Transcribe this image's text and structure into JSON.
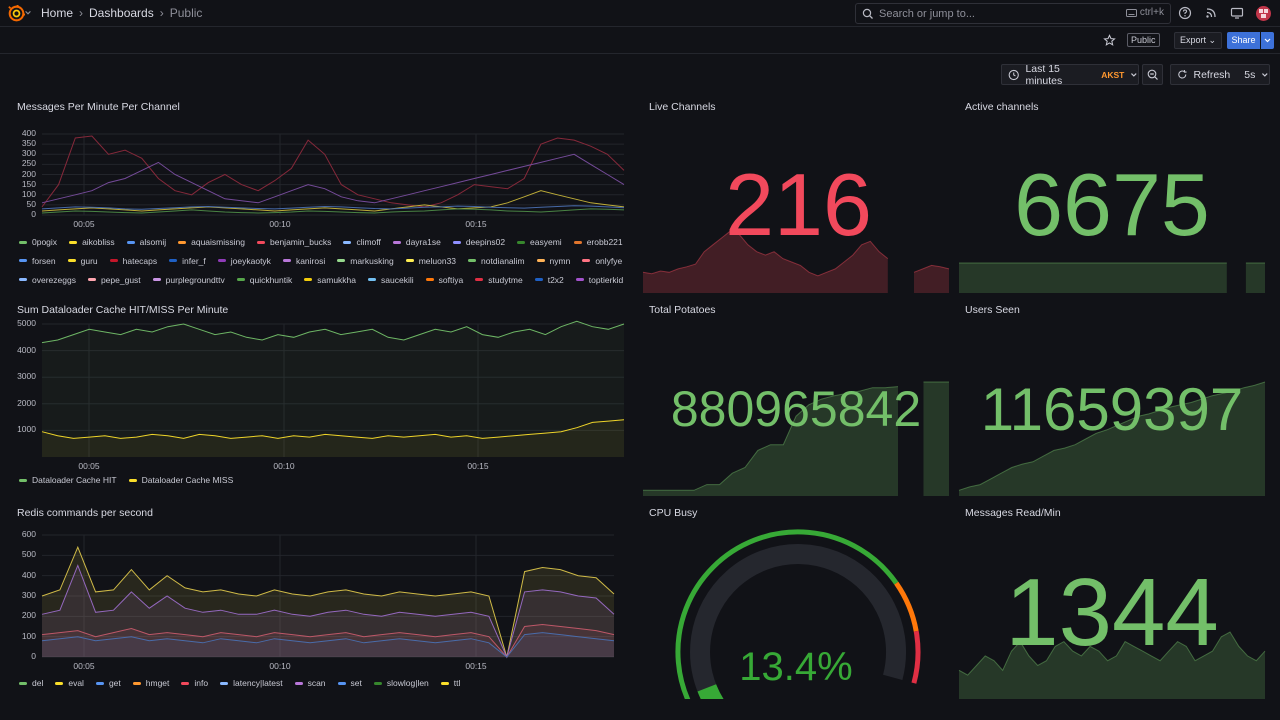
{
  "nav": {
    "breadcrumbs": [
      "Home",
      "Dashboards",
      "Public"
    ],
    "search_placeholder": "Search or jump to...",
    "search_shortcut": "ctrl+k"
  },
  "toolbar": {
    "public_badge": "Public",
    "export_label": "Export",
    "share_label": "Share",
    "time_range": "Last 15 minutes",
    "timezone": "AKST",
    "refresh_label": "Refresh",
    "refresh_interval": "5s"
  },
  "colors": {
    "background": "#111217",
    "accent": "#3d71d9",
    "green": "#73bf69",
    "red": "#f2495c",
    "yellow": "#fade2a"
  },
  "panels": {
    "messages_per_minute": {
      "title": "Messages Per Minute Per Channel",
      "legend": [
        {
          "name": "0pogix",
          "color": "#73bf69"
        },
        {
          "name": "aikobliss",
          "color": "#fade2a"
        },
        {
          "name": "alsomij",
          "color": "#5794f2"
        },
        {
          "name": "aquaismissing",
          "color": "#ff9830"
        },
        {
          "name": "benjamin_bucks",
          "color": "#f2495c"
        },
        {
          "name": "climoff",
          "color": "#8ab8ff"
        },
        {
          "name": "dayra1se",
          "color": "#b877d9"
        },
        {
          "name": "deepins02",
          "color": "#8f8fff"
        },
        {
          "name": "easyemi",
          "color": "#37872d"
        },
        {
          "name": "erobb221",
          "color": "#e0752d"
        },
        {
          "name": "forsen",
          "color": "#5794f2"
        },
        {
          "name": "guru",
          "color": "#fade2a"
        },
        {
          "name": "hatecaps",
          "color": "#c4162a"
        },
        {
          "name": "infer_f",
          "color": "#1f60c4"
        },
        {
          "name": "joeykaotyk",
          "color": "#8f3bb8"
        },
        {
          "name": "kanirosi",
          "color": "#b877d9"
        },
        {
          "name": "markusking",
          "color": "#96d98d"
        },
        {
          "name": "meluon33",
          "color": "#ffee52"
        },
        {
          "name": "notdianalim",
          "color": "#73bf69"
        },
        {
          "name": "nymn",
          "color": "#ffb357"
        },
        {
          "name": "onlyfye",
          "color": "#ff7383"
        },
        {
          "name": "overezeggs",
          "color": "#8ab8ff"
        },
        {
          "name": "pepe_gust",
          "color": "#ffa6b0"
        },
        {
          "name": "purplegroundttv",
          "color": "#ca95e5"
        },
        {
          "name": "quickhuntik",
          "color": "#56a64b"
        },
        {
          "name": "samukkha",
          "color": "#f2cc0c"
        },
        {
          "name": "saucekili",
          "color": "#73c0f2"
        },
        {
          "name": "softiya",
          "color": "#ff780a"
        },
        {
          "name": "studytme",
          "color": "#e02f44"
        },
        {
          "name": "t2x2",
          "color": "#1f60c4"
        },
        {
          "name": "toptierkid",
          "color": "#a352cc"
        }
      ],
      "chart_data": {
        "type": "line",
        "y_ticks": [
          "400",
          "350",
          "300",
          "250",
          "200",
          "150",
          "100",
          "50",
          "0"
        ],
        "x_ticks": [
          "00:05",
          "00:10",
          "00:15"
        ],
        "ylim": [
          0,
          400
        ],
        "series": [
          {
            "name": "benjamin_bucks",
            "color": "#8c2a3c",
            "values": [
              40,
              150,
              380,
              390,
              300,
              320,
              280,
              180,
              120,
              100,
              160,
              200,
              150,
              120,
              170,
              230,
              370,
              300,
              150,
              100,
              80,
              60,
              50,
              40,
              60,
              100,
              150,
              140,
              130,
              180,
              350,
              380,
              370,
              340,
              300,
              220
            ]
          },
          {
            "name": "purplegroundttv",
            "color": "#7a4ea0",
            "values": [
              60,
              80,
              100,
              120,
              160,
              180,
              220,
              260,
              200,
              160,
              120,
              80,
              70,
              60,
              90,
              120,
              150,
              130,
              90,
              70,
              60,
              80,
              100,
              120,
              140,
              160,
              180,
              200,
              220,
              240,
              260,
              280,
              300,
              250,
              200,
              150
            ]
          },
          {
            "name": "aikobliss",
            "color": "#c7b53a",
            "values": [
              20,
              25,
              30,
              35,
              30,
              25,
              20,
              25,
              30,
              35,
              40,
              35,
              30,
              25,
              20,
              25,
              30,
              35,
              30,
              25,
              20,
              30,
              40,
              50,
              40,
              30,
              35,
              40,
              60,
              90,
              120,
              100,
              80,
              60,
              50,
              40
            ]
          },
          {
            "name": "0pogix",
            "color": "#4d8a47",
            "values": [
              10,
              15,
              20,
              18,
              15,
              12,
              10,
              15,
              20,
              25,
              20,
              15,
              12,
              10,
              12,
              15,
              20,
              18,
              15,
              12,
              10,
              15,
              18,
              20,
              25,
              30,
              28,
              25,
              20,
              18,
              15,
              20,
              25,
              30,
              28,
              25
            ]
          },
          {
            "name": "alsomij",
            "color": "#4a6fb0",
            "values": [
              30,
              35,
              40,
              38,
              35,
              30,
              28,
              32,
              36,
              40,
              42,
              38,
              35,
              32,
              30,
              34,
              38,
              42,
              40,
              36,
              32,
              30,
              34,
              38,
              40,
              44,
              42,
              38,
              36,
              34,
              38,
              42,
              46,
              44,
              40,
              36
            ]
          }
        ]
      }
    },
    "live_channels": {
      "title": "Live Channels",
      "value": "216",
      "color": "#f2495c"
    },
    "active_channels": {
      "title": "Active channels",
      "value": "6675",
      "color": "#73bf69"
    },
    "dataloader": {
      "title": "Sum Dataloader Cache HIT/MISS Per Minute",
      "legend": [
        {
          "name": "Dataloader Cache HIT",
          "color": "#73bf69"
        },
        {
          "name": "Dataloader Cache MISS",
          "color": "#fade2a"
        }
      ],
      "chart_data": {
        "type": "line",
        "y_ticks": [
          "5000",
          "4000",
          "3000",
          "2000",
          "1000"
        ],
        "x_ticks": [
          "00:05",
          "00:10",
          "00:15"
        ],
        "ylim": [
          0,
          5000
        ],
        "series": [
          {
            "name": "Dataloader Cache HIT",
            "color": "#73bf69",
            "values": [
              4300,
              4400,
              4600,
              4800,
              4700,
              4600,
              4800,
              4700,
              4900,
              5000,
              4800,
              4600,
              4700,
              4500,
              4400,
              4600,
              4500,
              4700,
              4800,
              4600,
              4700,
              4800,
              4500,
              4400,
              4600,
              4800,
              4700,
              4900,
              4600,
              4500,
              4700,
              4800,
              4600,
              4900,
              5100,
              4900,
              4800,
              5000
            ]
          },
          {
            "name": "Dataloader Cache MISS",
            "color": "#fade2a",
            "values": [
              950,
              800,
              700,
              750,
              800,
              700,
              750,
              850,
              800,
              700,
              850,
              800,
              700,
              750,
              800,
              700,
              800,
              750,
              850,
              800,
              750,
              700,
              800,
              750,
              800,
              850,
              750,
              800,
              700,
              750,
              800,
              850,
              900,
              950,
              1100,
              1300,
              1350,
              1400
            ]
          }
        ]
      }
    },
    "total_potatoes": {
      "title": "Total Potatoes",
      "value": "880965842",
      "color": "#73bf69"
    },
    "users_seen": {
      "title": "Users Seen",
      "value": "11659397",
      "color": "#73bf69"
    },
    "redis": {
      "title": "Redis commands per second",
      "legend": [
        {
          "name": "del",
          "color": "#73bf69"
        },
        {
          "name": "eval",
          "color": "#fade2a"
        },
        {
          "name": "get",
          "color": "#5794f2"
        },
        {
          "name": "hmget",
          "color": "#ff9830"
        },
        {
          "name": "info",
          "color": "#f2495c"
        },
        {
          "name": "latency|latest",
          "color": "#8ab8ff"
        },
        {
          "name": "scan",
          "color": "#b877d9"
        },
        {
          "name": "set",
          "color": "#5794f2"
        },
        {
          "name": "slowlog|len",
          "color": "#37872d"
        },
        {
          "name": "ttl",
          "color": "#fade2a"
        }
      ],
      "chart_data": {
        "type": "area",
        "y_ticks": [
          "600",
          "500",
          "400",
          "300",
          "200",
          "100",
          "0"
        ],
        "x_ticks": [
          "00:05",
          "00:10",
          "00:15"
        ],
        "ylim": [
          0,
          600
        ],
        "series": [
          {
            "name": "eval",
            "color": "#d9c34a",
            "values": [
              300,
              330,
              540,
              320,
              330,
              430,
              330,
              400,
              340,
              320,
              330,
              310,
              300,
              330,
              310,
              300,
              320,
              330,
              310,
              300,
              320,
              310,
              300,
              310,
              320,
              300,
              0,
              420,
              440,
              430,
              400,
              390,
              310
            ]
          },
          {
            "name": "scan",
            "color": "#9a6bc7",
            "values": [
              210,
              230,
              450,
              220,
              230,
              320,
              240,
              300,
              240,
              220,
              230,
              210,
              210,
              230,
              210,
              200,
              220,
              230,
              210,
              200,
              220,
              210,
              200,
              210,
              220,
              200,
              0,
              320,
              330,
              320,
              300,
              290,
              210
            ]
          },
          {
            "name": "info",
            "color": "#c45a6a",
            "values": [
              110,
              120,
              130,
              100,
              120,
              140,
              110,
              120,
              110,
              100,
              120,
              110,
              100,
              120,
              110,
              100,
              110,
              120,
              100,
              110,
              120,
              110,
              100,
              110,
              120,
              100,
              0,
              150,
              160,
              150,
              140,
              130,
              110
            ]
          },
          {
            "name": "get",
            "color": "#4a6fb0",
            "values": [
              80,
              90,
              100,
              80,
              90,
              100,
              80,
              90,
              80,
              70,
              90,
              80,
              70,
              90,
              80,
              70,
              80,
              90,
              70,
              80,
              90,
              80,
              70,
              80,
              90,
              70,
              0,
              110,
              120,
              110,
              100,
              90,
              80
            ]
          }
        ]
      }
    },
    "cpu_busy": {
      "title": "CPU Busy",
      "value": "13.4%",
      "percent": 13.4,
      "color": "#37a936"
    },
    "messages_read": {
      "title": "Messages Read/Min",
      "value": "1344",
      "color": "#73bf69"
    }
  },
  "sparklines": {
    "live_channels": [
      30,
      28,
      32,
      30,
      35,
      38,
      42,
      60,
      70,
      80,
      90,
      85,
      70,
      60,
      55,
      60,
      50,
      45,
      40,
      30,
      25,
      30,
      35,
      45,
      55,
      70,
      75,
      60,
      50,
      null,
      null,
      30,
      35,
      40,
      38,
      35
    ],
    "active_channels": [
      50,
      50,
      50,
      50,
      50,
      50,
      50,
      50,
      50,
      50,
      50,
      50,
      50,
      50,
      50,
      50,
      50,
      50,
      50,
      50,
      50,
      50,
      50,
      50,
      50,
      50,
      50,
      50,
      50,
      null,
      50,
      50,
      50
    ],
    "total_potatoes": [
      5,
      5,
      5,
      5,
      5,
      10,
      10,
      20,
      25,
      40,
      45,
      45,
      70,
      80,
      85,
      88,
      90,
      92,
      95,
      95,
      96,
      null,
      100,
      100,
      100
    ],
    "users_seen": [
      5,
      8,
      10,
      15,
      20,
      25,
      28,
      30,
      35,
      40,
      42,
      45,
      50,
      55,
      58,
      62,
      66,
      70,
      72,
      75,
      78,
      80,
      82,
      85,
      88,
      90,
      92,
      95,
      97,
      100
    ],
    "messages_read": [
      30,
      25,
      35,
      45,
      40,
      30,
      50,
      60,
      45,
      35,
      40,
      55,
      60,
      50,
      45,
      55,
      50,
      40,
      45,
      60,
      55,
      50,
      45,
      40,
      50,
      60,
      55,
      40,
      45,
      50,
      65,
      70,
      55,
      45,
      40,
      50
    ]
  }
}
